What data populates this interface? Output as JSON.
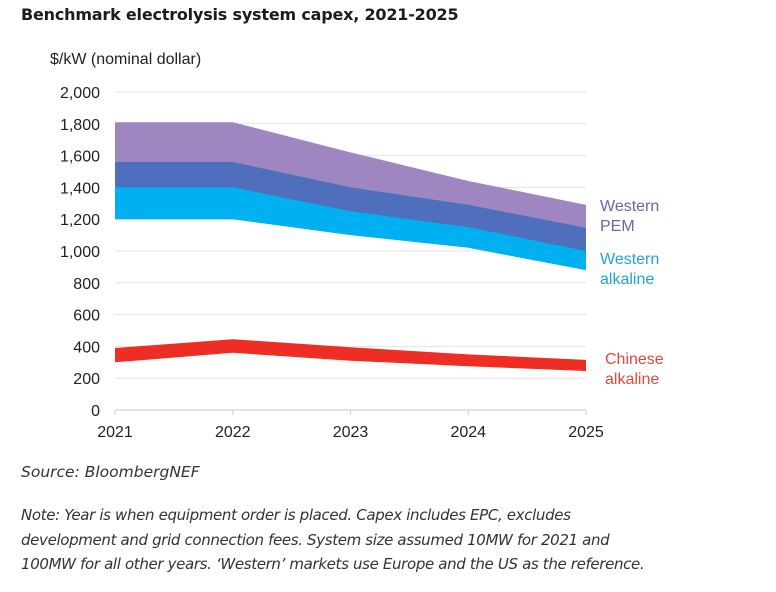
{
  "title": "Benchmark electrolysis system capex, 2021-2025",
  "source": "Source: BloombergNEF",
  "note_lines": [
    "Note: Year is when equipment order is placed. Capex includes EPC, excludes",
    "development and grid connection fees. System size assumed 10MW for 2021 and",
    "100MW for all other years. ‘Western’ markets use Europe and the US as the reference."
  ],
  "chart_data": {
    "type": "area",
    "title": "Benchmark electrolysis system capex, 2021-2025",
    "xlabel": "",
    "ylabel": "$/kW (nominal dollar)",
    "x": [
      "2021",
      "2022",
      "2023",
      "2024",
      "2025"
    ],
    "ylim": [
      0,
      2000
    ],
    "yticks": [
      0,
      200,
      400,
      600,
      800,
      1000,
      1200,
      1400,
      1600,
      1800,
      2000
    ],
    "ytick_labels": [
      "0",
      "200",
      "400",
      "600",
      "800",
      "1,000",
      "1,200",
      "1,400",
      "1,600",
      "1,800",
      "2,000"
    ],
    "grid": true,
    "legend": "right (inline labels)",
    "overlap_color": "#4f6fbd",
    "series": [
      {
        "name": "Western PEM",
        "label_lines": [
          "Western",
          "PEM"
        ],
        "color": "#a086c0",
        "label_color": "#7a5fa0",
        "low": [
          1400,
          1400,
          1250,
          1150,
          1000
        ],
        "high": [
          1810,
          1810,
          1620,
          1440,
          1290
        ]
      },
      {
        "name": "Western alkaline",
        "label_lines": [
          "Western",
          "alkaline"
        ],
        "color": "#00b0f0",
        "label_color": "#1fa5d6",
        "low": [
          1200,
          1200,
          1100,
          1020,
          880
        ],
        "high": [
          1560,
          1560,
          1400,
          1290,
          1145
        ]
      },
      {
        "name": "Chinese alkaline",
        "label_lines": [
          "Chinese",
          "alkaline"
        ],
        "color": "#ee2e24",
        "label_color": "#e5463c",
        "low": [
          300,
          360,
          310,
          275,
          245
        ],
        "high": [
          390,
          445,
          395,
          350,
          315
        ]
      }
    ]
  }
}
